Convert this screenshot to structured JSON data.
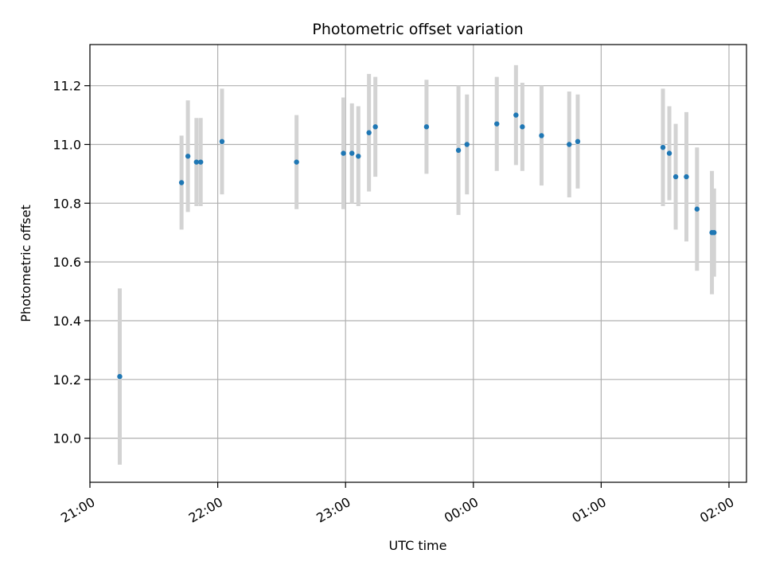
{
  "chart_data": {
    "type": "scatter",
    "title": "Photometric offset variation",
    "xlabel": "UTC time",
    "ylabel": "Photometric offset",
    "x_ticks": [
      "21:00",
      "22:00",
      "23:00",
      "00:00",
      "01:00",
      "02:00"
    ],
    "y_ticks": [
      "10.0",
      "10.2",
      "10.4",
      "10.6",
      "10.8",
      "11.0",
      "11.2"
    ],
    "x_range": [
      "21:00",
      "02:07"
    ],
    "ylim": [
      9.85,
      11.34
    ],
    "grid": true,
    "point_color": "#1f77b4",
    "errorbar_color": "#d3d3d3",
    "series": [
      {
        "points": [
          {
            "t": "21:14",
            "y": 10.21,
            "err": 0.3
          },
          {
            "t": "21:43",
            "y": 10.87,
            "err": 0.16
          },
          {
            "t": "21:46",
            "y": 10.96,
            "err": 0.19
          },
          {
            "t": "21:50",
            "y": 10.94,
            "err": 0.15
          },
          {
            "t": "21:52",
            "y": 10.94,
            "err": 0.15
          },
          {
            "t": "22:02",
            "y": 11.01,
            "err": 0.18
          },
          {
            "t": "22:37",
            "y": 10.94,
            "err": 0.16
          },
          {
            "t": "22:59",
            "y": 10.97,
            "err": 0.19
          },
          {
            "t": "23:03",
            "y": 10.97,
            "err": 0.17
          },
          {
            "t": "23:06",
            "y": 10.96,
            "err": 0.17
          },
          {
            "t": "23:11",
            "y": 11.04,
            "err": 0.2
          },
          {
            "t": "23:14",
            "y": 11.06,
            "err": 0.17
          },
          {
            "t": "23:38",
            "y": 11.06,
            "err": 0.16
          },
          {
            "t": "23:53",
            "y": 10.98,
            "err": 0.22
          },
          {
            "t": "23:57",
            "y": 11.0,
            "err": 0.17
          },
          {
            "t": "00:11",
            "y": 11.07,
            "err": 0.16
          },
          {
            "t": "00:20",
            "y": 11.1,
            "err": 0.17
          },
          {
            "t": "00:23",
            "y": 11.06,
            "err": 0.15
          },
          {
            "t": "00:32",
            "y": 11.03,
            "err": 0.17
          },
          {
            "t": "00:45",
            "y": 11.0,
            "err": 0.18
          },
          {
            "t": "00:49",
            "y": 11.01,
            "err": 0.16
          },
          {
            "t": "01:29",
            "y": 10.99,
            "err": 0.2
          },
          {
            "t": "01:32",
            "y": 10.97,
            "err": 0.16
          },
          {
            "t": "01:35",
            "y": 10.89,
            "err": 0.18
          },
          {
            "t": "01:40",
            "y": 10.89,
            "err": 0.22
          },
          {
            "t": "01:45",
            "y": 10.78,
            "err": 0.21
          },
          {
            "t": "01:52",
            "y": 10.7,
            "err": 0.21
          },
          {
            "t": "01:53",
            "y": 10.7,
            "err": 0.15
          }
        ]
      }
    ]
  }
}
